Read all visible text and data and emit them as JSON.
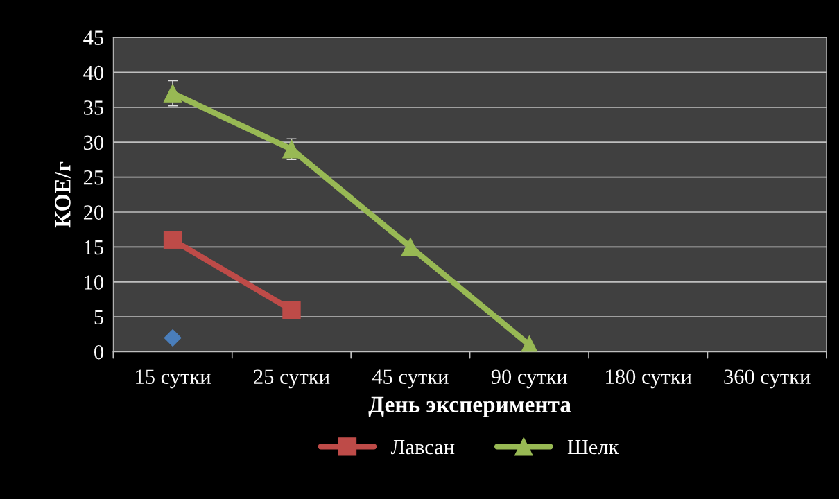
{
  "chart_data": {
    "type": "line",
    "xlabel": "День эксперимента",
    "ylabel": "КОЕ/г",
    "categories": [
      "15 сутки",
      "25 сутки",
      "45 сутки",
      "90 сутки",
      "180 сутки",
      "360 сутки"
    ],
    "series": [
      {
        "color": "#4a7ebb",
        "marker": "diamond",
        "values": [
          2,
          null,
          null,
          null,
          null,
          null
        ]
      },
      {
        "name": "Лавсан",
        "color": "#be4b48",
        "marker": "square",
        "values": [
          16,
          6,
          null,
          null,
          null,
          null
        ]
      },
      {
        "name": "Шелк",
        "color": "#98b954",
        "marker": "triangle",
        "values": [
          37,
          29,
          15,
          1,
          null,
          null
        ],
        "errors": [
          1.8,
          1.5,
          null,
          null,
          null,
          null
        ]
      }
    ],
    "ylim": [
      0,
      45
    ],
    "yticks": [
      0,
      5,
      10,
      15,
      20,
      25,
      30,
      35,
      40,
      45
    ],
    "grid": "y",
    "legend": "bottom"
  }
}
